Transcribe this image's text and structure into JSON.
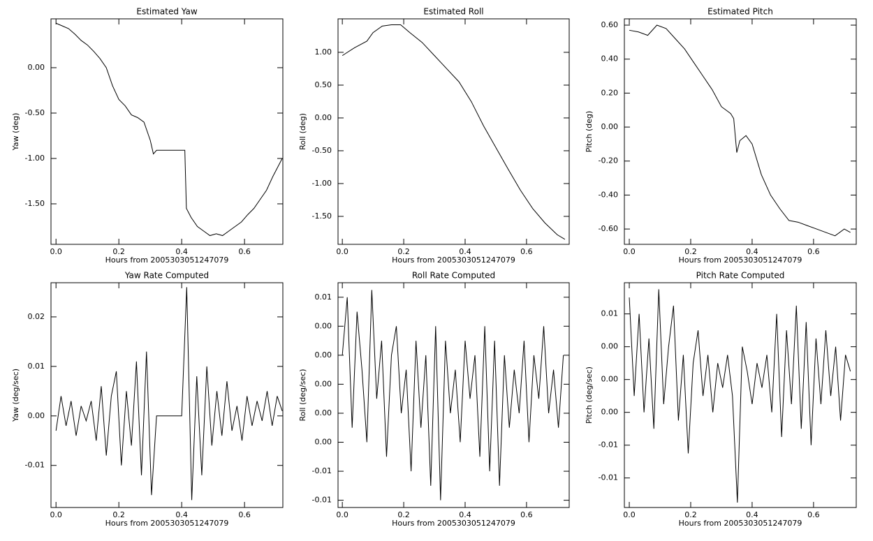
{
  "chart_data": [
    {
      "type": "line",
      "title": "Estimated Yaw",
      "xlabel": "Hours from 2005303051247079",
      "ylabel": "Yaw (deg)",
      "color": "#000000",
      "x": [
        0,
        0.02,
        0.04,
        0.06,
        0.08,
        0.1,
        0.12,
        0.14,
        0.16,
        0.18,
        0.2,
        0.22,
        0.24,
        0.26,
        0.28,
        0.3,
        0.31,
        0.32,
        0.41,
        0.415,
        0.43,
        0.45,
        0.47,
        0.49,
        0.51,
        0.53,
        0.55,
        0.57,
        0.59,
        0.61,
        0.63,
        0.65,
        0.67,
        0.69,
        0.72
      ],
      "values": [
        0.49,
        0.46,
        0.43,
        0.37,
        0.3,
        0.25,
        0.18,
        0.1,
        0.0,
        -0.2,
        -0.35,
        -0.42,
        -0.52,
        -0.55,
        -0.6,
        -0.8,
        -0.95,
        -0.91,
        -0.91,
        -1.55,
        -1.65,
        -1.75,
        -1.8,
        -1.85,
        -1.83,
        -1.85,
        -1.8,
        -1.75,
        -1.7,
        -1.62,
        -1.55,
        -1.45,
        -1.35,
        -1.2,
        -1.0
      ],
      "xlim": [
        -0.016,
        0.722
      ],
      "ylim": [
        -1.946,
        0.538
      ],
      "xticks": [
        {
          "value": 0,
          "label": "0.0"
        },
        0.2,
        0.4,
        0.6
      ],
      "yticks": [
        {
          "value": 0,
          "label": "0.00"
        },
        {
          "value": -0.5,
          "label": "-0.50"
        },
        {
          "value": -1,
          "label": "-1.00"
        },
        {
          "value": -1.5,
          "label": "-1.50"
        }
      ]
    },
    {
      "type": "line",
      "title": "Estimated Roll",
      "xlabel": "Hours from 2005303051247079",
      "ylabel": "Roll (deg)",
      "color": "#000000",
      "x": [
        0,
        0.04,
        0.08,
        0.1,
        0.13,
        0.16,
        0.19,
        0.22,
        0.26,
        0.3,
        0.34,
        0.38,
        0.42,
        0.46,
        0.5,
        0.54,
        0.58,
        0.62,
        0.66,
        0.7,
        0.725
      ],
      "values": [
        0.95,
        1.07,
        1.17,
        1.3,
        1.4,
        1.42,
        1.42,
        1.3,
        1.15,
        0.95,
        0.75,
        0.55,
        0.25,
        -0.12,
        -0.45,
        -0.78,
        -1.1,
        -1.38,
        -1.6,
        -1.78,
        -1.85
      ],
      "xlim": [
        -0.014,
        0.739
      ],
      "ylim": [
        -1.926,
        1.51
      ],
      "xticks": [
        {
          "value": 0,
          "label": "0.0"
        },
        0.2,
        0.4,
        0.6
      ],
      "yticks": [
        {
          "value": 1,
          "label": "1.00"
        },
        {
          "value": 0.5,
          "label": "0.50"
        },
        {
          "value": 0,
          "label": "0.00"
        },
        {
          "value": -0.5,
          "label": "-0.50"
        },
        {
          "value": -1,
          "label": "-1.00"
        },
        {
          "value": -1.5,
          "label": "-1.50"
        }
      ]
    },
    {
      "type": "line",
      "title": "Estimated Pitch",
      "xlabel": "Hours from 2005303051247079",
      "ylabel": "Pitch (deg)",
      "color": "#000000",
      "x": [
        0,
        0.03,
        0.06,
        0.09,
        0.12,
        0.15,
        0.18,
        0.21,
        0.24,
        0.27,
        0.3,
        0.33,
        0.34,
        0.35,
        0.36,
        0.38,
        0.4,
        0.43,
        0.46,
        0.49,
        0.52,
        0.55,
        0.58,
        0.61,
        0.64,
        0.67,
        0.7,
        0.72
      ],
      "values": [
        0.57,
        0.56,
        0.54,
        0.6,
        0.58,
        0.52,
        0.46,
        0.38,
        0.3,
        0.22,
        0.12,
        0.08,
        0.05,
        -0.15,
        -0.08,
        -0.05,
        -0.1,
        -0.28,
        -0.4,
        -0.48,
        -0.55,
        -0.56,
        -0.58,
        -0.6,
        -0.62,
        -0.64,
        -0.6,
        -0.62
      ],
      "xlim": [
        -0.016,
        0.739
      ],
      "ylim": [
        -0.69,
        0.637
      ],
      "xticks": [
        {
          "value": 0,
          "label": "0.0"
        },
        0.2,
        0.4,
        0.6
      ],
      "yticks": [
        {
          "value": 0.6,
          "label": "0.60"
        },
        {
          "value": 0.4,
          "label": "0.40"
        },
        {
          "value": 0.2,
          "label": "0.20"
        },
        {
          "value": 0,
          "label": "0.00"
        },
        {
          "value": -0.2,
          "label": "-0.20"
        },
        {
          "value": -0.4,
          "label": "-0.40"
        },
        {
          "value": -0.6,
          "label": "-0.60"
        }
      ]
    },
    {
      "type": "line",
      "title": "Yaw Rate Computed",
      "xlabel": "Hours from 2005303051247079",
      "ylabel": "Yaw (deg/sec)",
      "color": "#000000",
      "x": [
        0,
        0.016,
        0.032,
        0.048,
        0.064,
        0.08,
        0.096,
        0.112,
        0.128,
        0.144,
        0.16,
        0.176,
        0.192,
        0.208,
        0.224,
        0.24,
        0.256,
        0.272,
        0.288,
        0.304,
        0.32,
        0.336,
        0.352,
        0.368,
        0.384,
        0.4,
        0.416,
        0.432,
        0.448,
        0.464,
        0.48,
        0.496,
        0.512,
        0.528,
        0.544,
        0.56,
        0.576,
        0.592,
        0.608,
        0.624,
        0.64,
        0.656,
        0.672,
        0.688,
        0.704,
        0.72
      ],
      "values": [
        -0.003,
        0.004,
        -0.002,
        0.003,
        -0.004,
        0.002,
        -0.001,
        0.003,
        -0.005,
        0.006,
        -0.008,
        0.004,
        0.009,
        -0.01,
        0.005,
        -0.006,
        0.011,
        -0.012,
        0.013,
        -0.016,
        0,
        0,
        0,
        0,
        0,
        0,
        0.026,
        -0.017,
        0.008,
        -0.012,
        0.01,
        -0.006,
        0.005,
        -0.004,
        0.007,
        -0.003,
        0.002,
        -0.005,
        0.004,
        -0.002,
        0.003,
        -0.001,
        0.005,
        -0.002,
        0.004,
        0.001
      ],
      "xlim": [
        -0.016,
        0.722
      ],
      "ylim": [
        -0.0185,
        0.0269
      ],
      "xticks": [
        {
          "value": 0,
          "label": "0.0"
        },
        0.2,
        0.4,
        0.6
      ],
      "yticks": [
        0.02,
        0.01,
        {
          "value": 0,
          "label": "0.00"
        },
        -0.01
      ]
    },
    {
      "type": "line",
      "title": "Roll Rate Computed",
      "xlabel": "Hours from 2005303051247079",
      "ylabel": "Roll (deg/sec)",
      "color": "#000000",
      "x": [
        0,
        0.016,
        0.032,
        0.048,
        0.064,
        0.08,
        0.096,
        0.112,
        0.128,
        0.144,
        0.16,
        0.176,
        0.192,
        0.208,
        0.224,
        0.24,
        0.256,
        0.272,
        0.288,
        0.304,
        0.32,
        0.336,
        0.352,
        0.368,
        0.384,
        0.4,
        0.416,
        0.432,
        0.448,
        0.464,
        0.48,
        0.496,
        0.512,
        0.528,
        0.544,
        0.56,
        0.576,
        0.592,
        0.608,
        0.624,
        0.64,
        0.656,
        0.672,
        0.688,
        0.704,
        0.72
      ],
      "values": [
        0.002,
        0.006,
        -0.003,
        0.005,
        0.001,
        -0.004,
        0.0065,
        -0.001,
        0.003,
        -0.005,
        0.002,
        0.004,
        -0.002,
        0.001,
        -0.006,
        0.003,
        -0.003,
        0.002,
        -0.007,
        0.004,
        -0.008,
        0.003,
        -0.002,
        0.001,
        -0.004,
        0.003,
        -0.001,
        0.002,
        -0.005,
        0.004,
        -0.006,
        0.003,
        -0.007,
        0.002,
        -0.003,
        0.001,
        -0.002,
        0.003,
        -0.004,
        0.002,
        -0.001,
        0.004,
        -0.002,
        0.001,
        -0.003,
        0.002
      ],
      "xlim": [
        -0.014,
        0.739
      ],
      "ylim": [
        -0.0085,
        0.007
      ],
      "xticks": [
        {
          "value": 0,
          "label": "0.0"
        },
        0.2,
        0.4,
        0.6
      ],
      "yticks": [
        {
          "value": 0.006,
          "label": "0.01"
        },
        {
          "value": 0.004,
          "label": "0.00"
        },
        {
          "value": 0.002,
          "label": "0.00"
        },
        {
          "value": 0,
          "label": "0.00"
        },
        {
          "value": -0.002,
          "label": "0.00"
        },
        {
          "value": -0.004,
          "label": "0.00"
        },
        {
          "value": -0.006,
          "label": "-0.01"
        },
        {
          "value": -0.008,
          "label": "-0.01"
        }
      ]
    },
    {
      "type": "line",
      "title": "Pitch Rate Computed",
      "xlabel": "Hours from 2005303051247079",
      "ylabel": "Pitch (deg/sec)",
      "color": "#000000",
      "x": [
        0,
        0.016,
        0.032,
        0.048,
        0.064,
        0.08,
        0.096,
        0.112,
        0.128,
        0.144,
        0.16,
        0.176,
        0.192,
        0.208,
        0.224,
        0.24,
        0.256,
        0.272,
        0.288,
        0.304,
        0.32,
        0.336,
        0.352,
        0.368,
        0.384,
        0.4,
        0.416,
        0.432,
        0.448,
        0.464,
        0.48,
        0.496,
        0.512,
        0.528,
        0.544,
        0.56,
        0.576,
        0.592,
        0.608,
        0.624,
        0.64,
        0.656,
        0.672,
        0.688,
        0.704,
        0.72
      ],
      "values": [
        0.01,
        -0.002,
        0.008,
        -0.004,
        0.005,
        -0.006,
        0.011,
        -0.003,
        0.004,
        0.009,
        -0.005,
        0.003,
        -0.009,
        0.002,
        0.006,
        -0.002,
        0.003,
        -0.004,
        0.002,
        -0.001,
        0.003,
        -0.002,
        -0.015,
        0.004,
        0.001,
        -0.003,
        0.002,
        -0.001,
        0.003,
        -0.004,
        0.008,
        -0.007,
        0.006,
        -0.003,
        0.009,
        -0.006,
        0.007,
        -0.008,
        0.005,
        -0.003,
        0.006,
        -0.002,
        0.004,
        -0.005,
        0.003,
        0.001
      ],
      "xlim": [
        -0.016,
        0.739
      ],
      "ylim": [
        -0.0156,
        0.0118
      ],
      "xticks": [
        {
          "value": 0,
          "label": "0.0"
        },
        0.2,
        0.4,
        0.6
      ],
      "yticks": [
        {
          "value": 0.008,
          "label": "0.01"
        },
        {
          "value": 0.004,
          "label": "0.00"
        },
        {
          "value": 0,
          "label": "0.00"
        },
        {
          "value": -0.004,
          "label": "0.00"
        },
        {
          "value": -0.008,
          "label": "-0.01"
        },
        {
          "value": -0.012,
          "label": "-0.01"
        }
      ]
    }
  ]
}
